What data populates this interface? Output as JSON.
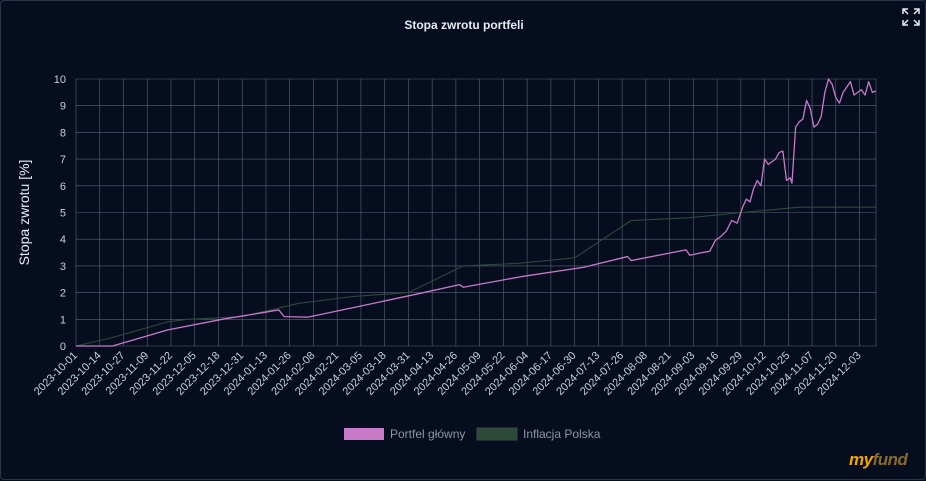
{
  "colors": {
    "background": "#050d1f",
    "grid": "#5a6577",
    "text": "#c9cfd8",
    "portfolio": "#c87ac8",
    "inflation": "#2c4a3a"
  },
  "icons": {
    "expand": "fullscreen-expand-icon"
  },
  "logo": {
    "part1": "my",
    "part2": "fund"
  },
  "chart_data": {
    "type": "line",
    "title": "Stopa zwrotu portfeli",
    "ylabel": "Stopa zwrotu [%]",
    "xlabel": "",
    "ylim": [
      0,
      10
    ],
    "yticks": [
      0,
      1,
      2,
      3,
      4,
      5,
      6,
      7,
      8,
      9,
      10
    ],
    "grid": true,
    "legend_position": "bottom",
    "x_start": "2023-10-01",
    "x_end": "2024-12-12",
    "xtick_labels": [
      "2023-10-01",
      "2023-10-14",
      "2023-10-27",
      "2023-11-09",
      "2023-11-22",
      "2023-12-05",
      "2023-12-18",
      "2023-12-31",
      "2024-01-13",
      "2024-01-26",
      "2024-02-08",
      "2024-02-21",
      "2024-03-05",
      "2024-03-18",
      "2024-03-31",
      "2024-04-13",
      "2024-04-26",
      "2024-05-09",
      "2024-05-22",
      "2024-06-04",
      "2024-06-17",
      "2024-06-30",
      "2024-07-13",
      "2024-07-26",
      "2024-08-08",
      "2024-08-21",
      "2024-09-03",
      "2024-09-16",
      "2024-09-29",
      "2024-10-12",
      "2024-10-25",
      "2024-11-07",
      "2024-11-20",
      "2024-12-03"
    ],
    "series": [
      {
        "name": "Portfel główny",
        "color": "#c87ac8",
        "points": [
          [
            "2023-10-01",
            0
          ],
          [
            "2023-10-21",
            0
          ],
          [
            "2023-11-20",
            0.6
          ],
          [
            "2023-12-20",
            1.0
          ],
          [
            "2024-01-20",
            1.35
          ],
          [
            "2024-01-23",
            1.1
          ],
          [
            "2024-02-05",
            1.08
          ],
          [
            "2024-03-05",
            1.5
          ],
          [
            "2024-04-05",
            1.95
          ],
          [
            "2024-04-28",
            2.3
          ],
          [
            "2024-04-30",
            2.2
          ],
          [
            "2024-06-01",
            2.6
          ],
          [
            "2024-07-05",
            2.95
          ],
          [
            "2024-07-29",
            3.35
          ],
          [
            "2024-07-31",
            3.2
          ],
          [
            "2024-08-30",
            3.6
          ],
          [
            "2024-09-01",
            3.4
          ],
          [
            "2024-09-08",
            3.5
          ],
          [
            "2024-09-12",
            3.55
          ],
          [
            "2024-09-15",
            3.95
          ],
          [
            "2024-09-18",
            4.1
          ],
          [
            "2024-09-21",
            4.3
          ],
          [
            "2024-09-24",
            4.7
          ],
          [
            "2024-09-27",
            4.6
          ],
          [
            "2024-09-30",
            5.2
          ],
          [
            "2024-10-02",
            5.5
          ],
          [
            "2024-10-04",
            5.4
          ],
          [
            "2024-10-06",
            5.9
          ],
          [
            "2024-10-08",
            6.2
          ],
          [
            "2024-10-10",
            6.0
          ],
          [
            "2024-10-12",
            7.0
          ],
          [
            "2024-10-14",
            6.8
          ],
          [
            "2024-10-16",
            6.9
          ],
          [
            "2024-10-18",
            7.0
          ],
          [
            "2024-10-20",
            7.25
          ],
          [
            "2024-10-22",
            7.3
          ],
          [
            "2024-10-24",
            6.2
          ],
          [
            "2024-10-26",
            6.3
          ],
          [
            "2024-10-27",
            6.1
          ],
          [
            "2024-10-29",
            8.2
          ],
          [
            "2024-10-31",
            8.4
          ],
          [
            "2024-11-02",
            8.5
          ],
          [
            "2024-11-04",
            9.2
          ],
          [
            "2024-11-06",
            8.9
          ],
          [
            "2024-11-08",
            8.2
          ],
          [
            "2024-11-10",
            8.3
          ],
          [
            "2024-11-12",
            8.6
          ],
          [
            "2024-11-14",
            9.5
          ],
          [
            "2024-11-16",
            10.0
          ],
          [
            "2024-11-18",
            9.8
          ],
          [
            "2024-11-20",
            9.3
          ],
          [
            "2024-11-22",
            9.1
          ],
          [
            "2024-11-24",
            9.5
          ],
          [
            "2024-11-26",
            9.7
          ],
          [
            "2024-11-28",
            9.9
          ],
          [
            "2024-11-30",
            9.4
          ],
          [
            "2024-12-02",
            9.5
          ],
          [
            "2024-12-04",
            9.6
          ],
          [
            "2024-12-06",
            9.4
          ],
          [
            "2024-12-08",
            9.9
          ],
          [
            "2024-12-10",
            9.5
          ],
          [
            "2024-12-12",
            9.55
          ]
        ]
      },
      {
        "name": "Inflacja  Polska",
        "color": "#2c4a3a",
        "points": [
          [
            "2023-10-01",
            0
          ],
          [
            "2023-10-20",
            0.3
          ],
          [
            "2023-11-20",
            0.9
          ],
          [
            "2023-12-01",
            1.0
          ],
          [
            "2023-12-31",
            1.1
          ],
          [
            "2024-01-31",
            1.6
          ],
          [
            "2024-02-29",
            1.85
          ],
          [
            "2024-03-31",
            2.0
          ],
          [
            "2024-04-30",
            3.0
          ],
          [
            "2024-05-31",
            3.1
          ],
          [
            "2024-06-30",
            3.3
          ],
          [
            "2024-07-31",
            4.7
          ],
          [
            "2024-08-31",
            4.8
          ],
          [
            "2024-09-30",
            5.0
          ],
          [
            "2024-10-31",
            5.2
          ],
          [
            "2024-11-30",
            5.2
          ],
          [
            "2024-12-12",
            5.2
          ]
        ]
      }
    ]
  }
}
